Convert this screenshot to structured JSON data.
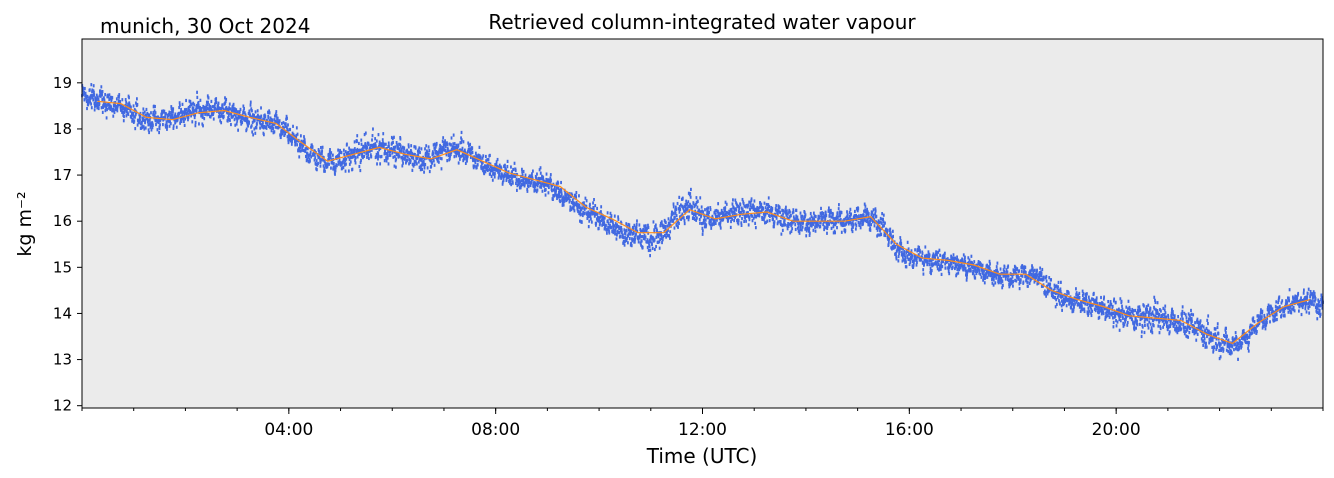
{
  "header": {
    "location_date": "munich, 30 Oct 2024"
  },
  "chart_data": {
    "type": "scatter",
    "title": "Retrieved column-integrated water vapour",
    "xlabel": "Time (UTC)",
    "ylabel": "kg m⁻²",
    "xlim": [
      0,
      24
    ],
    "ylim": [
      11.95,
      19.95
    ],
    "x_ticks": [
      {
        "value": 4,
        "label": "04:00"
      },
      {
        "value": 8,
        "label": "08:00"
      },
      {
        "value": 12,
        "label": "12:00"
      },
      {
        "value": 16,
        "label": "16:00"
      },
      {
        "value": 20,
        "label": "20:00"
      }
    ],
    "y_ticks": [
      12,
      13,
      14,
      15,
      16,
      17,
      18,
      19
    ],
    "grid": false,
    "background_color": "#ebebeb",
    "series": [
      {
        "role": "retrieved-samples",
        "marker": "dot",
        "color": "#4169e1",
        "x": [
          0.0,
          0.25,
          0.5,
          0.75,
          1.0,
          1.25,
          1.5,
          1.75,
          2.0,
          2.25,
          2.5,
          2.75,
          3.0,
          3.25,
          3.5,
          3.75,
          4.0,
          4.25,
          4.5,
          4.75,
          5.0,
          5.25,
          5.5,
          5.75,
          6.0,
          6.25,
          6.5,
          6.75,
          7.0,
          7.25,
          7.5,
          7.75,
          8.0,
          8.25,
          8.5,
          8.75,
          9.0,
          9.25,
          9.5,
          9.75,
          10.0,
          10.25,
          10.5,
          10.75,
          11.0,
          11.25,
          11.5,
          11.75,
          12.0,
          12.25,
          12.5,
          12.75,
          13.0,
          13.25,
          13.5,
          13.75,
          14.0,
          14.25,
          14.5,
          14.75,
          15.0,
          15.25,
          15.5,
          15.75,
          16.0,
          16.25,
          16.5,
          16.75,
          17.0,
          17.25,
          17.5,
          17.75,
          18.0,
          18.25,
          18.5,
          18.75,
          19.0,
          19.25,
          19.5,
          19.75,
          20.0,
          20.25,
          20.5,
          20.75,
          21.0,
          21.25,
          21.5,
          21.75,
          22.0,
          22.25,
          22.5,
          22.75,
          23.0,
          23.25,
          23.5,
          23.75,
          24.0
        ],
        "center": [
          18.7,
          18.65,
          18.55,
          18.5,
          18.3,
          18.2,
          18.2,
          18.25,
          18.35,
          18.4,
          18.45,
          18.4,
          18.3,
          18.2,
          18.15,
          18.1,
          17.9,
          17.6,
          17.4,
          17.3,
          17.3,
          17.45,
          17.55,
          17.6,
          17.55,
          17.45,
          17.35,
          17.4,
          17.55,
          17.55,
          17.45,
          17.25,
          17.1,
          17.0,
          16.9,
          16.85,
          16.8,
          16.6,
          16.4,
          16.2,
          16.1,
          15.9,
          15.75,
          15.7,
          15.65,
          15.75,
          16.1,
          16.3,
          16.1,
          16.05,
          16.15,
          16.2,
          16.25,
          16.2,
          16.1,
          16.0,
          15.95,
          16.0,
          16.05,
          16.0,
          16.05,
          16.1,
          15.9,
          15.4,
          15.2,
          15.2,
          15.15,
          15.1,
          15.05,
          15.0,
          14.9,
          14.8,
          14.8,
          14.85,
          14.8,
          14.5,
          14.3,
          14.25,
          14.2,
          14.1,
          14.0,
          13.95,
          13.9,
          13.95,
          13.85,
          13.8,
          13.7,
          13.55,
          13.4,
          13.3,
          13.45,
          13.8,
          14.0,
          14.15,
          14.25,
          14.3,
          14.1
        ],
        "spread": [
          0.25,
          0.3,
          0.2,
          0.15,
          0.25,
          0.2,
          0.2,
          0.2,
          0.25,
          0.25,
          0.2,
          0.2,
          0.2,
          0.25,
          0.25,
          0.2,
          0.2,
          0.2,
          0.2,
          0.2,
          0.25,
          0.25,
          0.3,
          0.3,
          0.25,
          0.2,
          0.25,
          0.25,
          0.25,
          0.25,
          0.2,
          0.2,
          0.2,
          0.2,
          0.2,
          0.2,
          0.2,
          0.2,
          0.2,
          0.25,
          0.2,
          0.2,
          0.25,
          0.25,
          0.35,
          0.3,
          0.35,
          0.3,
          0.25,
          0.2,
          0.25,
          0.25,
          0.25,
          0.2,
          0.25,
          0.25,
          0.2,
          0.2,
          0.25,
          0.2,
          0.2,
          0.25,
          0.25,
          0.2,
          0.2,
          0.2,
          0.2,
          0.2,
          0.2,
          0.2,
          0.2,
          0.2,
          0.2,
          0.2,
          0.25,
          0.2,
          0.2,
          0.2,
          0.2,
          0.2,
          0.3,
          0.25,
          0.3,
          0.3,
          0.25,
          0.25,
          0.25,
          0.3,
          0.25,
          0.2,
          0.2,
          0.2,
          0.2,
          0.2,
          0.2,
          0.25,
          0.2
        ]
      },
      {
        "role": "smoothed-line",
        "color": "#ff8c1a",
        "x": [
          0.3,
          0.75,
          1.25,
          1.75,
          2.25,
          2.75,
          3.25,
          3.75,
          4.25,
          4.75,
          5.25,
          5.75,
          6.25,
          6.75,
          7.25,
          7.75,
          8.25,
          8.75,
          9.25,
          9.75,
          10.25,
          10.75,
          11.25,
          11.75,
          12.25,
          12.75,
          13.25,
          13.75,
          14.25,
          14.75,
          15.25,
          15.75,
          16.25,
          16.75,
          17.25,
          17.75,
          18.25,
          18.75,
          19.25,
          19.75,
          20.25,
          20.75,
          21.25,
          21.75,
          22.25,
          22.75,
          23.25,
          23.75
        ],
        "y": [
          18.6,
          18.55,
          18.25,
          18.2,
          18.35,
          18.4,
          18.25,
          18.12,
          17.7,
          17.3,
          17.45,
          17.6,
          17.45,
          17.35,
          17.55,
          17.3,
          17.05,
          16.9,
          16.75,
          16.3,
          16.05,
          15.75,
          15.75,
          16.25,
          16.05,
          16.15,
          16.2,
          16.0,
          16.0,
          16.0,
          16.1,
          15.5,
          15.2,
          15.15,
          15.05,
          14.85,
          14.85,
          14.5,
          14.3,
          14.15,
          13.95,
          13.9,
          13.85,
          13.55,
          13.35,
          13.8,
          14.15,
          14.3
        ]
      }
    ]
  }
}
